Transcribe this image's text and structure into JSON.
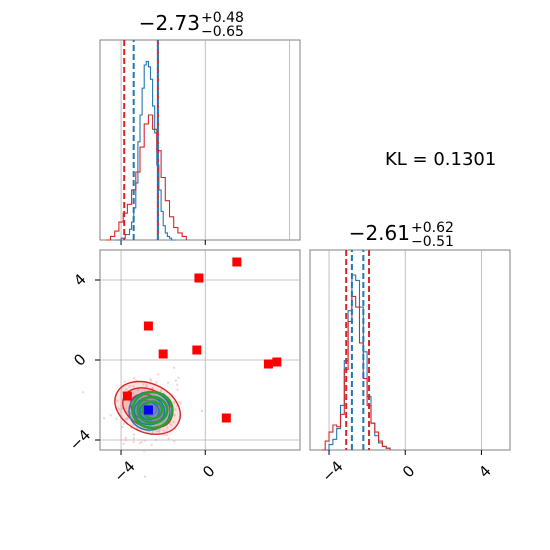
{
  "kl_label": "KL = 0.1301",
  "chart_data": [
    {
      "panel": "marginal-param-1",
      "type": "line",
      "title": {
        "median": "−2.73",
        "plus": "+0.48",
        "minus": "−0.65"
      },
      "xlim": [
        -5,
        4.5
      ],
      "ylim": [
        0,
        1.12
      ],
      "grid": true,
      "red_quantiles": [
        -3.85,
        -2.25
      ],
      "blue_quantiles": [
        -3.4,
        -2.25
      ],
      "series": [
        {
          "color": "#1f77b4",
          "x": [
            -4.3,
            -4.0,
            -3.8,
            -3.6,
            -3.5,
            -3.4,
            -3.3,
            -3.2,
            -3.1,
            -3.0,
            -2.9,
            -2.8,
            -2.7,
            -2.6,
            -2.5,
            -2.4,
            -2.3,
            -2.2,
            -2.1,
            -2.0,
            -1.9,
            -1.8,
            -1.7,
            -1.6,
            -1.4
          ],
          "y": [
            0.0,
            0.01,
            0.03,
            0.06,
            0.1,
            0.18,
            0.32,
            0.55,
            0.7,
            0.85,
            0.98,
            1.0,
            0.97,
            0.9,
            0.75,
            0.6,
            0.42,
            0.28,
            0.16,
            0.08,
            0.04,
            0.02,
            0.01,
            0.0,
            0.0
          ]
        },
        {
          "color": "#d62728",
          "x": [
            -4.7,
            -4.5,
            -4.3,
            -4.1,
            -3.9,
            -3.7,
            -3.5,
            -3.3,
            -3.1,
            -2.9,
            -2.7,
            -2.5,
            -2.3,
            -2.1,
            -1.9,
            -1.7,
            -1.5,
            -1.3,
            -1.1,
            -0.9
          ],
          "y": [
            0.0,
            0.02,
            0.05,
            0.1,
            0.15,
            0.2,
            0.28,
            0.38,
            0.52,
            0.65,
            0.7,
            0.62,
            0.5,
            0.35,
            0.22,
            0.13,
            0.07,
            0.04,
            0.02,
            0.0
          ]
        }
      ]
    },
    {
      "panel": "joint",
      "type": "scatter",
      "xlim": [
        -5,
        4.5
      ],
      "ylim": [
        -4.5,
        5.5
      ],
      "x_ticks": [
        "−4",
        "0"
      ],
      "y_ticks": [
        "4",
        "0",
        "−4"
      ],
      "x_tick_values": [
        -4,
        0
      ],
      "y_tick_values": [
        4,
        0,
        -4
      ],
      "grid": true,
      "contour_center": [
        -2.65,
        -2.55
      ],
      "red_markers": [
        [
          1.5,
          4.9
        ],
        [
          -0.3,
          4.1
        ],
        [
          -2.7,
          1.7
        ],
        [
          -2.0,
          0.3
        ],
        [
          -0.4,
          0.5
        ],
        [
          3.4,
          -0.1
        ],
        [
          3.0,
          -0.2
        ],
        [
          -3.7,
          -1.8
        ],
        [
          1.0,
          -2.9
        ]
      ],
      "blue_markers": [
        [
          -2.7,
          -2.5
        ]
      ]
    },
    {
      "panel": "marginal-param-2",
      "type": "line",
      "title": {
        "median": "−2.61",
        "plus": "+0.62",
        "minus": "−0.51"
      },
      "xlim": [
        -5,
        5.5
      ],
      "ylim": [
        0,
        1.12
      ],
      "x_ticks": [
        "−4",
        "0",
        "4"
      ],
      "x_tick_values": [
        -4,
        0,
        4
      ],
      "grid": true,
      "red_quantiles": [
        -3.1,
        -1.9
      ],
      "blue_quantiles": [
        -2.8,
        -2.2
      ],
      "series": [
        {
          "color": "#1f77b4",
          "x": [
            -4.3,
            -4.0,
            -3.8,
            -3.6,
            -3.4,
            -3.2,
            -3.0,
            -2.8,
            -2.6,
            -2.4,
            -2.2,
            -2.0,
            -1.8,
            -1.6,
            -1.4,
            -1.2,
            -1.0,
            -0.8
          ],
          "y": [
            0.0,
            0.03,
            0.06,
            0.12,
            0.25,
            0.5,
            0.78,
            0.98,
            0.95,
            0.8,
            0.55,
            0.3,
            0.15,
            0.08,
            0.04,
            0.02,
            0.01,
            0.0
          ]
        },
        {
          "color": "#d62728",
          "x": [
            -4.4,
            -4.2,
            -4.0,
            -3.8,
            -3.6,
            -3.4,
            -3.2,
            -3.0,
            -2.8,
            -2.6,
            -2.4,
            -2.2,
            -2.0,
            -1.8,
            -1.6,
            -1.4,
            -1.2,
            -1.0,
            -0.8
          ],
          "y": [
            0.0,
            0.05,
            0.1,
            0.14,
            0.13,
            0.2,
            0.45,
            0.72,
            0.86,
            0.8,
            0.6,
            0.4,
            0.25,
            0.15,
            0.1,
            0.05,
            0.02,
            0.01,
            0.0
          ]
        }
      ]
    }
  ]
}
